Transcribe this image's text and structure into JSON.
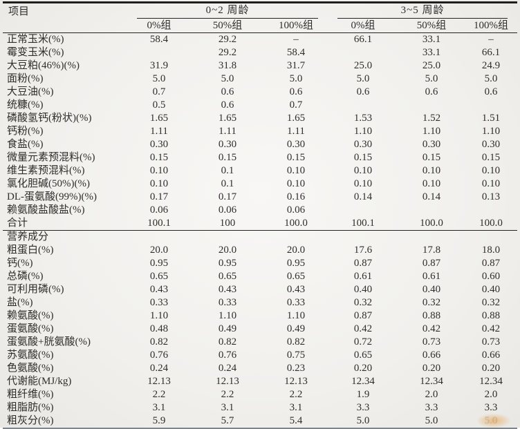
{
  "page": {
    "artifact_color": "#e9993d",
    "line_color": "#1e1e1e"
  },
  "table": {
    "corner_label": "项目",
    "groups": [
      {
        "label": "0~2 周龄",
        "subheaders": [
          "0%组",
          "50%组",
          "100%组"
        ]
      },
      {
        "label": "3~5 周龄",
        "subheaders": [
          "0%组",
          "50%组",
          "100%组"
        ]
      }
    ],
    "sections": [
      {
        "name": "formula",
        "rows": [
          {
            "label": "正常玉米(%)",
            "values": [
              "58.4",
              "29.2",
              "–",
              "66.1",
              "33.1",
              "–"
            ]
          },
          {
            "label": "霉变玉米(%)",
            "values": [
              "",
              "29.2",
              "58.4",
              "",
              "33.1",
              "66.1"
            ]
          },
          {
            "label": "大豆粕(46%)(%)",
            "values": [
              "31.9",
              "31.8",
              "31.7",
              "25.0",
              "25.0",
              "24.9"
            ]
          },
          {
            "label": "面粉(%)",
            "values": [
              "5.0",
              "5.0",
              "5.0",
              "5.0",
              "5.0",
              "5.0"
            ]
          },
          {
            "label": "大豆油(%)",
            "values": [
              "0.7",
              "0.6",
              "0.6",
              "0.6",
              "0.6",
              "0.6"
            ]
          },
          {
            "label": "统糠(%)",
            "values": [
              "0.5",
              "0.6",
              "0.7",
              "",
              "",
              ""
            ]
          },
          {
            "label": "磷酸氢钙(粉状)(%)",
            "values": [
              "1.65",
              "1.65",
              "1.65",
              "1.53",
              "1.52",
              "1.51"
            ]
          },
          {
            "label": "钙粉(%)",
            "values": [
              "1.11",
              "1.11",
              "1.11",
              "1.10",
              "1.10",
              "1.10"
            ]
          },
          {
            "label": "食盐(%)",
            "values": [
              "0.30",
              "0.30",
              "0.30",
              "0.30",
              "0.30",
              "0.30"
            ]
          },
          {
            "label": "微量元素预混料(%)",
            "values": [
              "0.15",
              "0.15",
              "0.15",
              "0.15",
              "0.15",
              "0.15"
            ]
          },
          {
            "label": "维生素预混料(%)",
            "values": [
              "0.10",
              "0.1",
              "0.10",
              "0.10",
              "0.10",
              "0.10"
            ]
          },
          {
            "label": "氯化胆碱(50%)(%)",
            "values": [
              "0.10",
              "0.1",
              "0.10",
              "0.10",
              "0.10",
              "0.10"
            ]
          },
          {
            "label": "DL-蛋氨酸(99%)(%)",
            "values": [
              "0.17",
              "0.17",
              "0.16",
              "0.14",
              "0.14",
              "0.13"
            ]
          },
          {
            "label": "赖氨酸盐酸盐(%)",
            "values": [
              "0.06",
              "0.06",
              "0.06",
              "",
              "",
              ""
            ]
          },
          {
            "label": "合计",
            "values": [
              "100.1",
              "100",
              "100.0",
              "100.1",
              "100.0",
              "100.0"
            ]
          }
        ]
      },
      {
        "name": "nutrition",
        "header": "营养成分",
        "rows": [
          {
            "label": "粗蛋白(%)",
            "values": [
              "20.0",
              "20.0",
              "20.0",
              "17.6",
              "17.8",
              "18.0"
            ]
          },
          {
            "label": "钙(%)",
            "values": [
              "0.95",
              "0.95",
              "0.95",
              "0.87",
              "0.87",
              "0.87"
            ]
          },
          {
            "label": "总磷(%)",
            "values": [
              "0.65",
              "0.65",
              "0.65",
              "0.61",
              "0.61",
              "0.60"
            ]
          },
          {
            "label": "可利用磷(%)",
            "values": [
              "0.43",
              "0.43",
              "0.43",
              "0.40",
              "0.40",
              "0.40"
            ]
          },
          {
            "label": "盐(%)",
            "values": [
              "0.33",
              "0.33",
              "0.33",
              "0.32",
              "0.32",
              "0.32"
            ]
          },
          {
            "label": "赖氨酸(%)",
            "values": [
              "1.10",
              "1.10",
              "1.10",
              "0.87",
              "0.88",
              "0.88"
            ]
          },
          {
            "label": "蛋氨酸(%)",
            "values": [
              "0.48",
              "0.49",
              "0.49",
              "0.42",
              "0.42",
              "0.42"
            ]
          },
          {
            "label": "蛋氨酸+胱氨酸(%)",
            "values": [
              "0.82",
              "0.82",
              "0.82",
              "0.72",
              "0.73",
              "0.73"
            ]
          },
          {
            "label": "苏氨酸(%)",
            "values": [
              "0.76",
              "0.76",
              "0.75",
              "0.65",
              "0.66",
              "0.66"
            ]
          },
          {
            "label": "色氨酸(%)",
            "values": [
              "0.24",
              "0.24",
              "0.23",
              "0.20",
              "0.20",
              "0.20"
            ]
          },
          {
            "label": "代谢能(MJ/kg)",
            "values": [
              "12.13",
              "12.13",
              "12.13",
              "12.34",
              "12.34",
              "12.34"
            ]
          },
          {
            "label": "粗纤维(%)",
            "values": [
              "2.2",
              "2.2",
              "2.2",
              "1.9",
              "2.0",
              "2.0"
            ]
          },
          {
            "label": "粗脂肪(%)",
            "values": [
              "3.1",
              "3.1",
              "3.1",
              "3.3",
              "3.3",
              "3.3"
            ]
          },
          {
            "label": "粗灰分(%)",
            "values": [
              "5.9",
              "5.7",
              "5.4",
              "5.0",
              "5.0",
              "5.0"
            ]
          }
        ]
      }
    ]
  }
}
